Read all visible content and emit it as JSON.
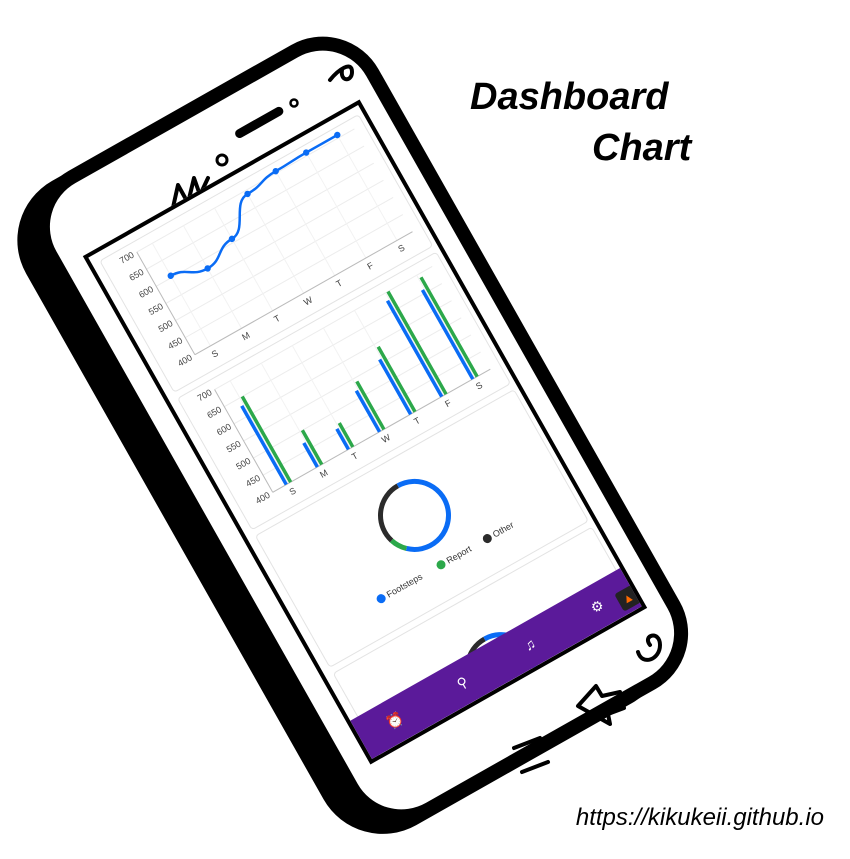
{
  "header": {
    "title_line1": "Dashboard",
    "title_line2": "Chart"
  },
  "footer": {
    "url": "https://kikukeii.github.io"
  },
  "colors": {
    "blue": "#0a6cf5",
    "green": "#2ca84a",
    "dark": "#2b2b2b",
    "nav": "#5b1a9a"
  },
  "icons": {
    "nav": [
      "alarm-icon",
      "search-icon",
      "bell-icon",
      "gear-icon"
    ],
    "app": "flame-icon"
  },
  "chart_data": [
    {
      "type": "line",
      "categories": [
        "S",
        "M",
        "T",
        "W",
        "T",
        "F",
        "S"
      ],
      "yticks": [
        "400",
        "450",
        "500",
        "550",
        "600",
        "650",
        "700"
      ],
      "ylim": [
        400,
        700
      ],
      "series": [
        {
          "values": [
            605,
            575,
            610,
            690,
            705,
            708,
            708
          ]
        }
      ]
    },
    {
      "type": "bar",
      "categories": [
        "S",
        "M",
        "T",
        "W",
        "T",
        "F",
        "S"
      ],
      "yticks": [
        "400",
        "450",
        "500",
        "550",
        "600",
        "650",
        "700"
      ],
      "ylim": [
        400,
        700
      ],
      "series": [
        {
          "values": [
            630,
            470,
            460,
            520,
            560,
            680,
            660
          ]
        },
        {
          "values": [
            650,
            500,
            470,
            540,
            590,
            700,
            690
          ]
        }
      ]
    },
    {
      "type": "pie",
      "labels": [
        "Footsteps",
        "Report",
        "Other"
      ],
      "values": [
        62,
        8,
        30
      ]
    },
    {
      "type": "pie",
      "labels": [
        "Footsteps",
        "Report",
        "Other"
      ],
      "values": [
        62,
        8,
        30
      ]
    }
  ]
}
